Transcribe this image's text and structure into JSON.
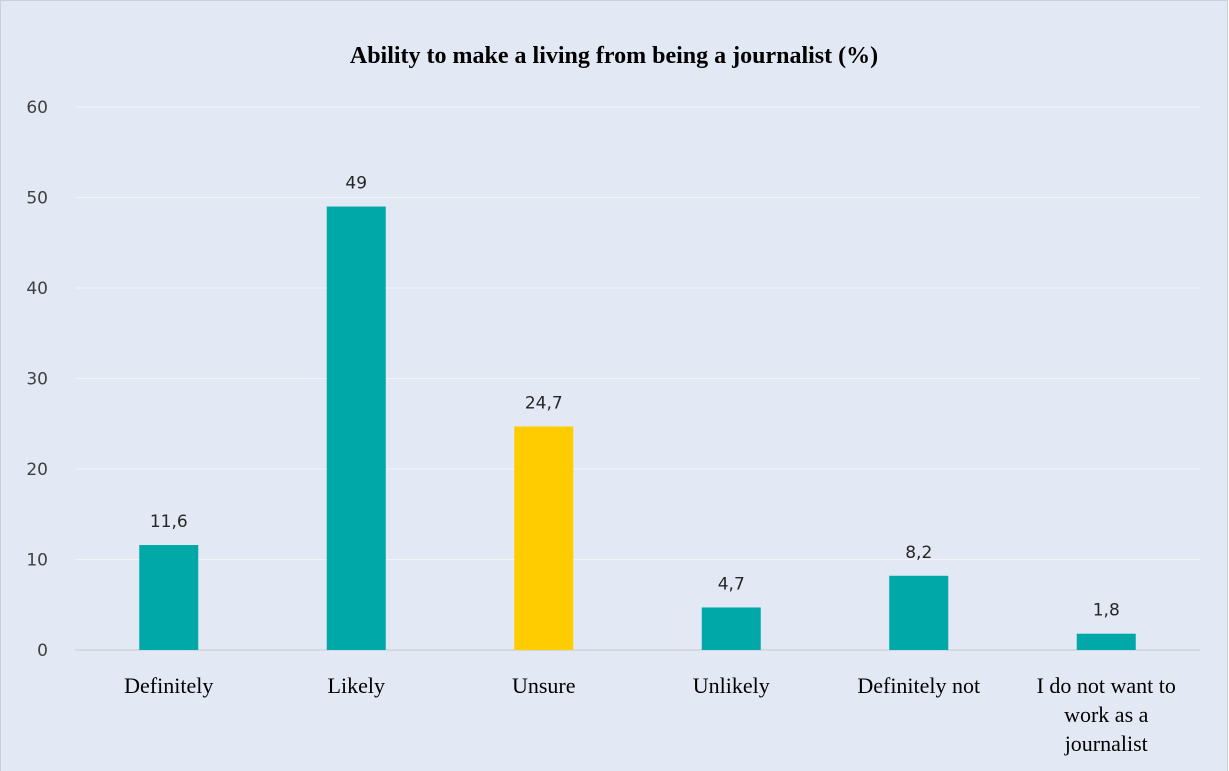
{
  "chart_data": {
    "type": "bar",
    "title": "Ability to make a living from being a journalist (%)",
    "categories": [
      "Definitely",
      "Likely",
      "Unsure",
      "Unlikely",
      "Definitely not",
      "I do not want to work as a journalist"
    ],
    "category_label_lines": [
      [
        "Definitely"
      ],
      [
        "Likely"
      ],
      [
        "Unsure"
      ],
      [
        "Unlikely"
      ],
      [
        "Definitely not"
      ],
      [
        "I do not want to",
        "work as a",
        "journalist"
      ]
    ],
    "values": [
      11.6,
      49,
      24.7,
      4.7,
      8.2,
      1.8
    ],
    "data_labels": [
      "11,6",
      "49",
      "24,7",
      "4,7",
      "8,2",
      "1,8"
    ],
    "highlight_index": 2,
    "ylim": [
      0,
      60
    ],
    "yticks": [
      0,
      10,
      20,
      30,
      40,
      50,
      60
    ],
    "xlabel": "",
    "ylabel": "",
    "grid": true,
    "legend": "none",
    "colors": {
      "background": "#E2E8F4",
      "border": "#C9D1E0",
      "bar": "#00A8A8",
      "highlight": "#FFCC00",
      "grid": "#F2F4F8",
      "axis": "#D0D4DA"
    }
  }
}
